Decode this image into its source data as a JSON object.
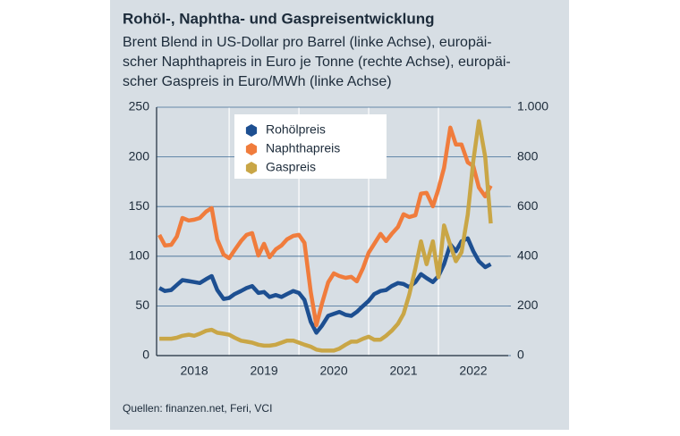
{
  "chart_data": {
    "type": "line",
    "title": "Rohöl-, Naphtha- und Gaspreisentwicklung",
    "subtitle": [
      "Brent Blend in US-Dollar pro Barrel (linke Achse), europäi-",
      "scher Naphthapreis in Euro je Tonne (rechte Achse), europäi-",
      "scher Gaspreis in Euro/MWh (linke Achse)"
    ],
    "source": "Quellen: finanzen.net, Feri, VCI",
    "x": [
      2018.0,
      2018.08,
      2018.17,
      2018.25,
      2018.33,
      2018.42,
      2018.5,
      2018.58,
      2018.67,
      2018.75,
      2018.83,
      2018.92,
      2019.0,
      2019.08,
      2019.17,
      2019.25,
      2019.33,
      2019.42,
      2019.5,
      2019.58,
      2019.67,
      2019.75,
      2019.83,
      2019.92,
      2020.0,
      2020.08,
      2020.17,
      2020.25,
      2020.33,
      2020.42,
      2020.5,
      2020.58,
      2020.67,
      2020.75,
      2020.83,
      2020.92,
      2021.0,
      2021.08,
      2021.17,
      2021.25,
      2021.33,
      2021.42,
      2021.5,
      2021.58,
      2021.67,
      2021.75,
      2021.83,
      2021.92,
      2022.0,
      2022.08,
      2022.17,
      2022.25,
      2022.33,
      2022.42,
      2022.5,
      2022.58,
      2022.67,
      2022.75
    ],
    "xlim": [
      2017.96,
      2023.0
    ],
    "xticks": [
      {
        "value": 2018.5,
        "label": "2018"
      },
      {
        "value": 2019.5,
        "label": "2019"
      },
      {
        "value": 2020.5,
        "label": "2020"
      },
      {
        "value": 2021.5,
        "label": "2021"
      },
      {
        "value": 2022.5,
        "label": "2022"
      }
    ],
    "year_separators": [
      2019,
      2020,
      2021,
      2022
    ],
    "ylim": [
      0,
      250
    ],
    "yticks": [
      0,
      50,
      100,
      150,
      200,
      250
    ],
    "y2lim": [
      0,
      1000
    ],
    "y2ticks": [
      0,
      200,
      400,
      600,
      800,
      {
        "value": 1000,
        "label": "1.000"
      }
    ],
    "grid": true,
    "series": [
      {
        "name": "Rohölpreis",
        "color": "#1d4f91",
        "axis": "y",
        "values": [
          68,
          65,
          66,
          71,
          76,
          75,
          74,
          73,
          77,
          80,
          66,
          57,
          58,
          62,
          65,
          68,
          70,
          63,
          64,
          59,
          61,
          59,
          62,
          65,
          63,
          56,
          34,
          23,
          30,
          40,
          42,
          44,
          41,
          40,
          44,
          50,
          55,
          62,
          65,
          66,
          70,
          73,
          72,
          69,
          74,
          82,
          78,
          74,
          80,
          92,
          112,
          105,
          115,
          118,
          105,
          95,
          89,
          92
        ]
      },
      {
        "name": "Naphthapreis",
        "color": "#f07c3c",
        "axis": "y2",
        "values": [
          486,
          443,
          446,
          479,
          554,
          544,
          547,
          554,
          580,
          594,
          468,
          407,
          392,
          425,
          461,
          486,
          493,
          403,
          450,
          396,
          428,
          443,
          468,
          482,
          486,
          454,
          256,
          122,
          209,
          295,
          331,
          320,
          313,
          317,
          299,
          353,
          414,
          450,
          490,
          461,
          490,
          518,
          569,
          558,
          565,
          652,
          655,
          601,
          670,
          756,
          918,
          850,
          850,
          778,
          763,
          677,
          641,
          684
        ]
      },
      {
        "name": "Gaspreis",
        "color": "#c9a646",
        "axis": "y",
        "values": [
          17,
          17,
          17,
          18,
          20,
          21,
          20,
          22,
          25,
          26,
          23,
          22,
          21,
          18,
          15,
          14,
          13,
          11,
          10,
          10,
          11,
          13,
          15,
          15,
          13,
          11,
          9,
          6,
          5,
          5,
          5,
          7,
          11,
          14,
          14,
          17,
          19,
          16,
          16,
          20,
          25,
          32,
          42,
          61,
          88,
          115,
          92,
          115,
          79,
          131,
          111,
          95,
          104,
          142,
          196,
          236,
          200,
          133
        ]
      }
    ]
  }
}
